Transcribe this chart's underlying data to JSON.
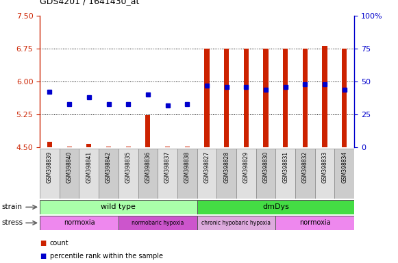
{
  "title": "GDS4201 / 1641430_at",
  "samples": [
    "GSM398839",
    "GSM398840",
    "GSM398841",
    "GSM398842",
    "GSM398835",
    "GSM398836",
    "GSM398837",
    "GSM398838",
    "GSM398827",
    "GSM398828",
    "GSM398829",
    "GSM398830",
    "GSM398831",
    "GSM398832",
    "GSM398833",
    "GSM398834"
  ],
  "counts": [
    4.62,
    4.51,
    4.58,
    4.51,
    4.51,
    5.23,
    4.51,
    4.51,
    6.75,
    6.75,
    6.75,
    6.75,
    6.75,
    6.75,
    6.82,
    6.75
  ],
  "percentiles": [
    42,
    33,
    38,
    33,
    33,
    40,
    32,
    33,
    47,
    46,
    46,
    44,
    46,
    48,
    48,
    44
  ],
  "ylim_left": [
    4.5,
    7.5
  ],
  "ylim_right": [
    0,
    100
  ],
  "yticks_left": [
    4.5,
    5.25,
    6.0,
    6.75,
    7.5
  ],
  "yticks_right": [
    0,
    25,
    50,
    75,
    100
  ],
  "ytick_labels_right": [
    "0",
    "25",
    "50",
    "75",
    "100%"
  ],
  "hlines": [
    5.25,
    6.0,
    6.75
  ],
  "bar_color": "#cc2200",
  "dot_color": "#0000cc",
  "left_axis_color": "#cc2200",
  "right_axis_color": "#0000cc",
  "bar_width": 0.25,
  "strain_groups": [
    {
      "label": "wild type",
      "start": 0,
      "end": 7,
      "color": "#aaffaa"
    },
    {
      "label": "dmDys",
      "start": 8,
      "end": 15,
      "color": "#44dd44"
    }
  ],
  "stress_groups": [
    {
      "label": "normoxia",
      "start": 0,
      "end": 3,
      "color": "#ee88ee"
    },
    {
      "label": "normobaric hypoxia",
      "start": 4,
      "end": 7,
      "color": "#cc55cc"
    },
    {
      "label": "chronic hypobaric hypoxia",
      "start": 8,
      "end": 11,
      "color": "#ddaadd"
    },
    {
      "label": "normoxia",
      "start": 12,
      "end": 15,
      "color": "#ee88ee"
    }
  ],
  "col_bg_even": "#e0e0e0",
  "col_bg_odd": "#cccccc",
  "plot_bg": "#ffffff"
}
